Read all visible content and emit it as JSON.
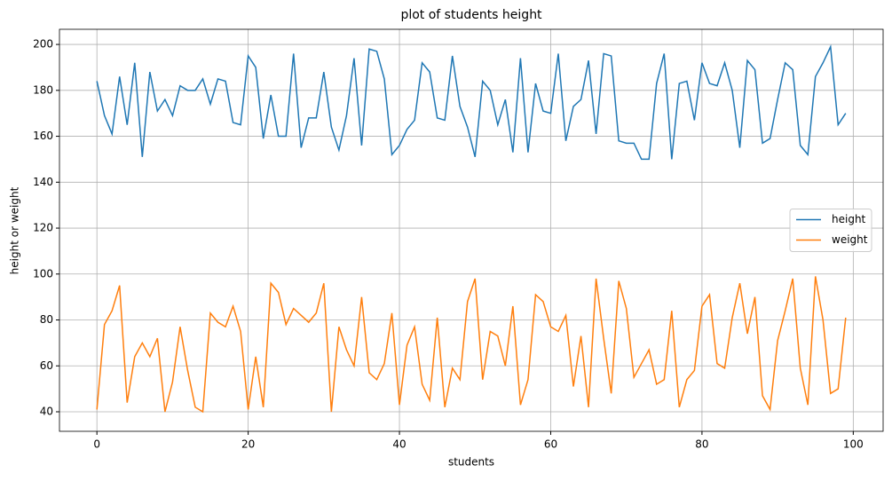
{
  "chart_data": {
    "type": "line",
    "title": "plot of students height",
    "xlabel": "students",
    "ylabel": "height or weight",
    "x": [
      0,
      1,
      2,
      3,
      4,
      5,
      6,
      7,
      8,
      9,
      10,
      11,
      12,
      13,
      14,
      15,
      16,
      17,
      18,
      19,
      20,
      21,
      22,
      23,
      24,
      25,
      26,
      27,
      28,
      29,
      30,
      31,
      32,
      33,
      34,
      35,
      36,
      37,
      38,
      39,
      40,
      41,
      42,
      43,
      44,
      45,
      46,
      47,
      48,
      49,
      50,
      51,
      52,
      53,
      54,
      55,
      56,
      57,
      58,
      59,
      60,
      61,
      62,
      63,
      64,
      65,
      66,
      67,
      68,
      69,
      70,
      71,
      72,
      73,
      74,
      75,
      76,
      77,
      78,
      79,
      80,
      81,
      82,
      83,
      84,
      85,
      86,
      87,
      88,
      89,
      90,
      91,
      92,
      93,
      94,
      95,
      96,
      97,
      98,
      99
    ],
    "series": [
      {
        "name": "height",
        "color": "#1f77b4",
        "values": [
          184,
          169,
          161,
          186,
          165,
          192,
          151,
          188,
          171,
          176,
          169,
          182,
          180,
          180,
          185,
          174,
          185,
          184,
          166,
          165,
          195,
          190,
          159,
          178,
          160,
          160,
          196,
          155,
          168,
          168,
          188,
          164,
          154,
          169,
          194,
          156,
          198,
          197,
          185,
          152,
          156,
          163,
          167,
          192,
          188,
          168,
          167,
          195,
          173,
          164,
          151,
          184,
          180,
          165,
          176,
          153,
          194,
          153,
          183,
          171,
          170,
          196,
          158,
          173,
          176,
          193,
          161,
          196,
          195,
          158,
          157,
          157,
          150,
          150,
          183,
          196,
          150,
          183,
          184,
          167,
          192,
          183,
          182,
          192,
          180,
          155,
          193,
          189,
          157,
          159,
          176,
          192,
          189,
          156,
          152,
          186,
          192,
          199,
          165,
          170
        ]
      },
      {
        "name": "weight",
        "color": "#ff7f0e",
        "values": [
          41,
          78,
          84,
          95,
          44,
          64,
          70,
          64,
          72,
          40,
          53,
          77,
          58,
          42,
          40,
          83,
          79,
          77,
          86,
          75,
          41,
          64,
          42,
          96,
          92,
          78,
          85,
          82,
          79,
          83,
          96,
          40,
          77,
          67,
          60,
          90,
          57,
          54,
          61,
          83,
          43,
          69,
          77,
          52,
          45,
          81,
          42,
          59,
          54,
          88,
          98,
          54,
          75,
          73,
          60,
          86,
          43,
          54,
          91,
          88,
          77,
          75,
          82,
          51,
          73,
          42,
          98,
          72,
          48,
          97,
          85,
          55,
          61,
          67,
          52,
          54,
          84,
          42,
          54,
          58,
          86,
          91,
          61,
          59,
          81,
          96,
          74,
          90,
          47,
          41,
          71,
          84,
          98,
          59,
          43,
          99,
          80,
          48,
          50,
          81
        ]
      }
    ],
    "xlim": [
      -4.95,
      103.95
    ],
    "xticks": [
      0,
      20,
      40,
      60,
      80,
      100
    ],
    "ylim": [
      31.5,
      206.6
    ],
    "yticks": [
      40,
      60,
      80,
      100,
      120,
      140,
      160,
      180,
      200
    ],
    "grid": true,
    "legend": "center right"
  }
}
